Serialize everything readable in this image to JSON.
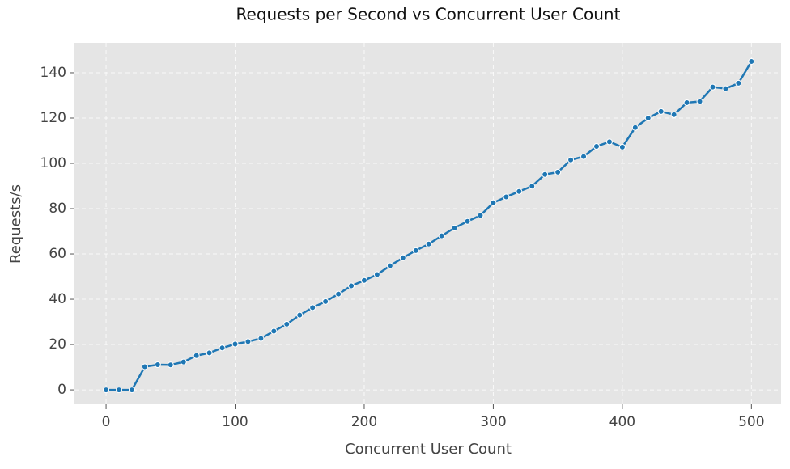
{
  "chart_data": {
    "type": "line",
    "title": "Requests per Second vs Concurrent User Count",
    "x_label": "Concurrent User Count",
    "y_label": "Requests/s",
    "x": [
      0,
      10,
      20,
      30,
      40,
      50,
      60,
      70,
      80,
      90,
      100,
      110,
      120,
      130,
      140,
      150,
      160,
      170,
      180,
      190,
      200,
      210,
      220,
      230,
      240,
      250,
      260,
      270,
      280,
      290,
      300,
      310,
      320,
      330,
      340,
      350,
      360,
      370,
      380,
      390,
      400,
      410,
      420,
      430,
      440,
      450,
      460,
      470,
      480,
      490,
      500
    ],
    "series": [
      {
        "name": "Requests/s",
        "color": "#1f77b4",
        "values": [
          0,
          0,
          0,
          10.2,
          11.1,
          11,
          12.3,
          15.1,
          16.3,
          18.5,
          20.2,
          21.3,
          22.7,
          25.9,
          29,
          33,
          36.3,
          39,
          42.3,
          45.9,
          48.3,
          50.9,
          54.8,
          58.3,
          61.5,
          64.4,
          68,
          71.5,
          74.4,
          77,
          82.6,
          85.2,
          87.6,
          89.9,
          95.1,
          96.1,
          101.5,
          103,
          107.5,
          109.5,
          107.2,
          115.8,
          120,
          122.9,
          121.5,
          126.8,
          127.3,
          133.7,
          133,
          135.4,
          145
        ]
      }
    ],
    "xlim": [
      -24.5,
      523
    ],
    "ylim": [
      -6.4,
      153.2
    ],
    "xticks": [
      0,
      100,
      200,
      300,
      400,
      500
    ],
    "yticks": [
      0,
      20,
      40,
      60,
      80,
      100,
      120,
      140
    ],
    "grid": true
  }
}
